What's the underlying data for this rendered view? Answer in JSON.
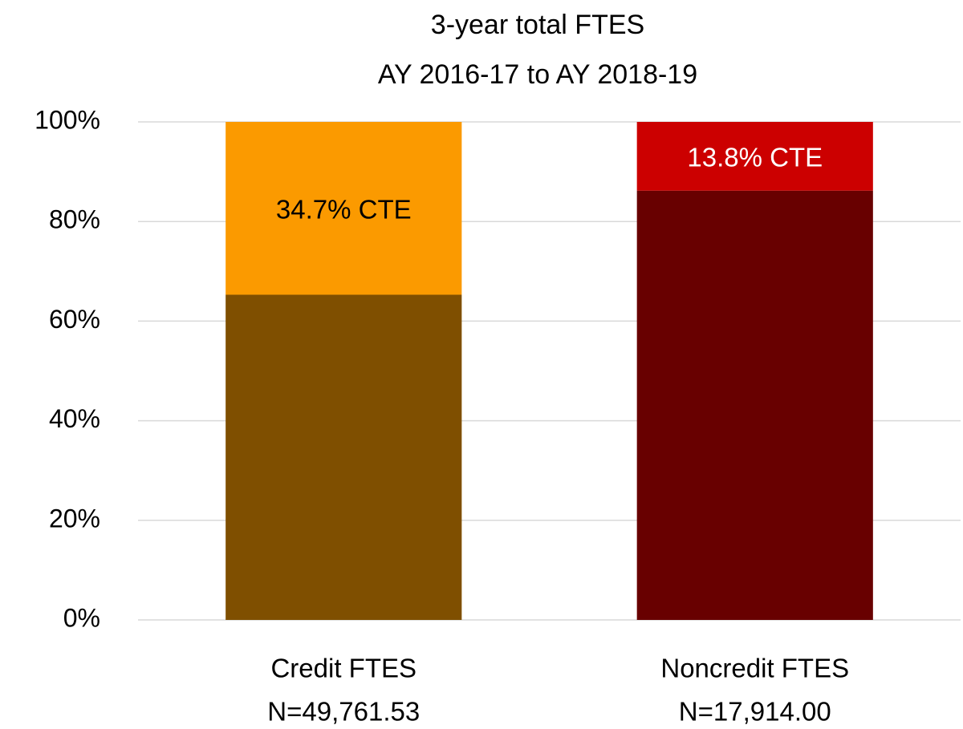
{
  "chart_data": {
    "type": "stacked_bar",
    "title": [
      "3-year total FTES",
      "AY 2016-17 to AY 2018-19"
    ],
    "categories": [
      [
        "Credit FTES",
        "N=49,761.53"
      ],
      [
        "Noncredit FTES",
        "N=17,914.00"
      ]
    ],
    "series": [
      {
        "colors": [
          "#7f4f00",
          "#680000"
        ],
        "values": [
          65.3,
          86.2
        ]
      },
      {
        "colors": [
          "#fb9a00",
          "#cc0000"
        ],
        "values": [
          34.7,
          13.8
        ],
        "value_labels": [
          "34.7% CTE",
          "13.8% CTE"
        ],
        "label_colors": [
          "#000000",
          "#ffffff"
        ]
      }
    ],
    "ylim": [
      0,
      100
    ],
    "yticks": [
      {
        "value": 0,
        "label": "0%"
      },
      {
        "value": 20,
        "label": "20%"
      },
      {
        "value": 40,
        "label": "40%"
      },
      {
        "value": 60,
        "label": "60%"
      },
      {
        "value": 80,
        "label": "80%"
      },
      {
        "value": 100,
        "label": "100%"
      }
    ],
    "grid": true
  }
}
